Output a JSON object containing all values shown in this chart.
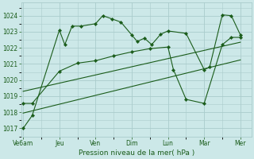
{
  "background_color": "#cce8e8",
  "grid_color": "#aacccc",
  "line_color": "#1a5c1a",
  "title": "Pression niveau de la mer( hPa )",
  "ylim": [
    1016.5,
    1024.8
  ],
  "yticks": [
    1017,
    1018,
    1019,
    1020,
    1021,
    1022,
    1023,
    1024
  ],
  "x_labels": [
    "Ve6am",
    "Jeu",
    "Ven",
    "Dim",
    "Lun",
    "Mar",
    "Mer"
  ],
  "x_positions": [
    0,
    1,
    2,
    3,
    4,
    5,
    6
  ],
  "xlim": [
    -0.05,
    6.3
  ],
  "series1_x": [
    0.0,
    0.25,
    1.0,
    1.15,
    1.35,
    1.6,
    2.0,
    2.2,
    2.45,
    2.7,
    3.0,
    3.15,
    3.35,
    3.55,
    3.8,
    4.0,
    4.5,
    5.0,
    5.15,
    5.5,
    5.75,
    6.0
  ],
  "series1_y": [
    1017.0,
    1017.8,
    1023.1,
    1022.2,
    1023.35,
    1023.35,
    1023.5,
    1024.0,
    1023.8,
    1023.6,
    1022.8,
    1022.4,
    1022.6,
    1022.2,
    1022.85,
    1023.05,
    1022.9,
    1020.65,
    1020.8,
    1024.05,
    1024.0,
    1022.8
  ],
  "series2_x": [
    0.0,
    0.25,
    1.0,
    1.5,
    2.0,
    2.5,
    3.0,
    3.5,
    4.0,
    4.15,
    4.5,
    5.0,
    5.5,
    5.75,
    6.0
  ],
  "series2_y": [
    1018.55,
    1018.55,
    1020.55,
    1021.05,
    1021.2,
    1021.5,
    1021.75,
    1021.95,
    1022.05,
    1020.65,
    1018.8,
    1018.55,
    1022.2,
    1022.65,
    1022.65
  ],
  "trend1_x": [
    0,
    6
  ],
  "trend1_y": [
    1019.3,
    1022.35
  ],
  "trend2_x": [
    0,
    6
  ],
  "trend2_y": [
    1017.95,
    1021.25
  ]
}
